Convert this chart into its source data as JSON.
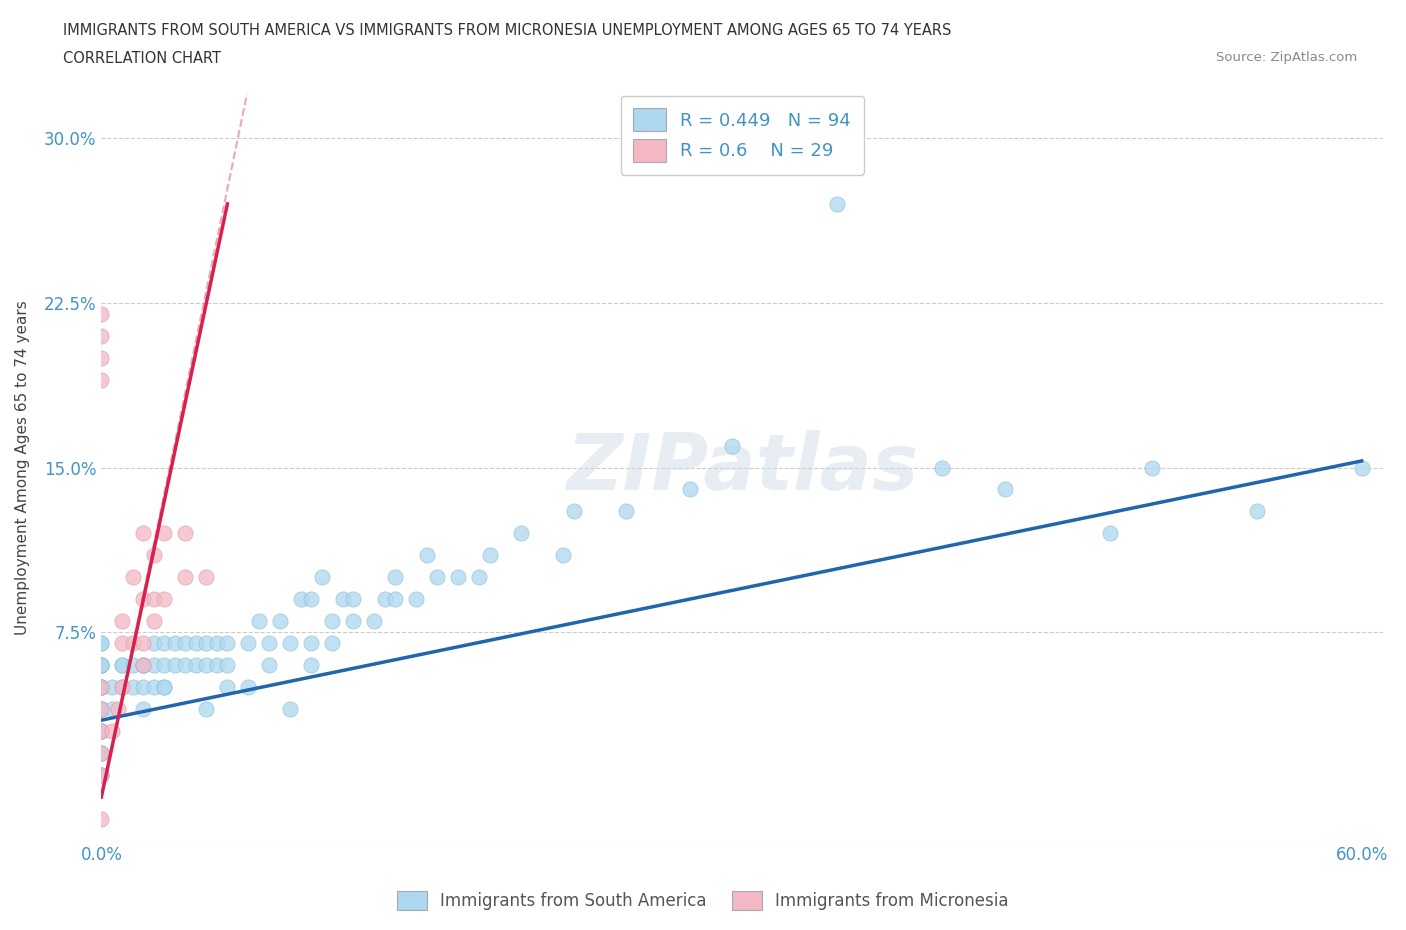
{
  "title_line1": "IMMIGRANTS FROM SOUTH AMERICA VS IMMIGRANTS FROM MICRONESIA UNEMPLOYMENT AMONG AGES 65 TO 74 YEARS",
  "title_line2": "CORRELATION CHART",
  "source_text": "Source: ZipAtlas.com",
  "ylabel": "Unemployment Among Ages 65 to 74 years",
  "xlim": [
    0.0,
    0.61
  ],
  "ylim": [
    -0.02,
    0.32
  ],
  "xticks": [
    0.0,
    0.1,
    0.2,
    0.3,
    0.4,
    0.5,
    0.6
  ],
  "xticklabels": [
    "0.0%",
    "",
    "",
    "",
    "",
    "",
    "60.0%"
  ],
  "yticks": [
    0.0,
    0.075,
    0.15,
    0.225,
    0.3
  ],
  "yticklabels": [
    "",
    "7.5%",
    "15.0%",
    "22.5%",
    "30.0%"
  ],
  "R_south_america": 0.449,
  "N_south_america": 94,
  "R_micronesia": 0.6,
  "N_micronesia": 29,
  "color_south_america": "#add8f0",
  "color_micronesia": "#f4b8c4",
  "line_color_south_america": "#2166ac",
  "line_color_micronesia": "#d6214e",
  "watermark_text": "ZIPatlas",
  "sa_line_x": [
    0.0,
    0.6
  ],
  "sa_line_y": [
    0.035,
    0.153
  ],
  "mi_line_x": [
    0.0,
    0.06
  ],
  "mi_line_y": [
    0.0,
    0.27
  ],
  "south_america_x": [
    0.0,
    0.0,
    0.0,
    0.0,
    0.0,
    0.0,
    0.0,
    0.0,
    0.0,
    0.0,
    0.0,
    0.0,
    0.0,
    0.0,
    0.0,
    0.0,
    0.0,
    0.0,
    0.0,
    0.0,
    0.005,
    0.005,
    0.01,
    0.01,
    0.01,
    0.015,
    0.015,
    0.02,
    0.02,
    0.02,
    0.02,
    0.025,
    0.025,
    0.025,
    0.03,
    0.03,
    0.03,
    0.03,
    0.035,
    0.035,
    0.04,
    0.04,
    0.045,
    0.045,
    0.05,
    0.05,
    0.05,
    0.055,
    0.055,
    0.06,
    0.06,
    0.06,
    0.07,
    0.07,
    0.075,
    0.08,
    0.08,
    0.085,
    0.09,
    0.09,
    0.095,
    0.1,
    0.1,
    0.1,
    0.105,
    0.11,
    0.11,
    0.115,
    0.12,
    0.12,
    0.13,
    0.135,
    0.14,
    0.14,
    0.15,
    0.155,
    0.16,
    0.17,
    0.18,
    0.185,
    0.2,
    0.22,
    0.225,
    0.25,
    0.28,
    0.3,
    0.35,
    0.4,
    0.43,
    0.48,
    0.5,
    0.55,
    0.6
  ],
  "south_america_y": [
    0.01,
    0.01,
    0.02,
    0.02,
    0.03,
    0.03,
    0.03,
    0.04,
    0.04,
    0.04,
    0.05,
    0.05,
    0.05,
    0.05,
    0.06,
    0.06,
    0.06,
    0.06,
    0.07,
    0.07,
    0.04,
    0.05,
    0.05,
    0.06,
    0.06,
    0.05,
    0.06,
    0.04,
    0.05,
    0.06,
    0.06,
    0.05,
    0.06,
    0.07,
    0.05,
    0.05,
    0.06,
    0.07,
    0.06,
    0.07,
    0.06,
    0.07,
    0.06,
    0.07,
    0.04,
    0.06,
    0.07,
    0.06,
    0.07,
    0.05,
    0.06,
    0.07,
    0.05,
    0.07,
    0.08,
    0.06,
    0.07,
    0.08,
    0.04,
    0.07,
    0.09,
    0.06,
    0.07,
    0.09,
    0.1,
    0.07,
    0.08,
    0.09,
    0.08,
    0.09,
    0.08,
    0.09,
    0.09,
    0.1,
    0.09,
    0.11,
    0.1,
    0.1,
    0.1,
    0.11,
    0.12,
    0.11,
    0.13,
    0.13,
    0.14,
    0.16,
    0.27,
    0.15,
    0.14,
    0.12,
    0.15,
    0.13,
    0.15
  ],
  "micronesia_x": [
    0.0,
    0.0,
    0.0,
    0.0,
    0.0,
    0.0,
    0.0,
    0.0,
    0.005,
    0.008,
    0.01,
    0.01,
    0.01,
    0.015,
    0.015,
    0.02,
    0.02,
    0.02,
    0.02,
    0.025,
    0.025,
    0.025,
    0.03,
    0.03,
    0.04,
    0.04,
    0.05,
    0.0,
    0.0
  ],
  "micronesia_y": [
    -0.01,
    0.01,
    0.02,
    0.03,
    0.04,
    0.05,
    0.19,
    0.2,
    0.03,
    0.04,
    0.05,
    0.07,
    0.08,
    0.07,
    0.1,
    0.06,
    0.07,
    0.09,
    0.12,
    0.08,
    0.09,
    0.11,
    0.09,
    0.12,
    0.1,
    0.12,
    0.1,
    0.21,
    0.22
  ]
}
